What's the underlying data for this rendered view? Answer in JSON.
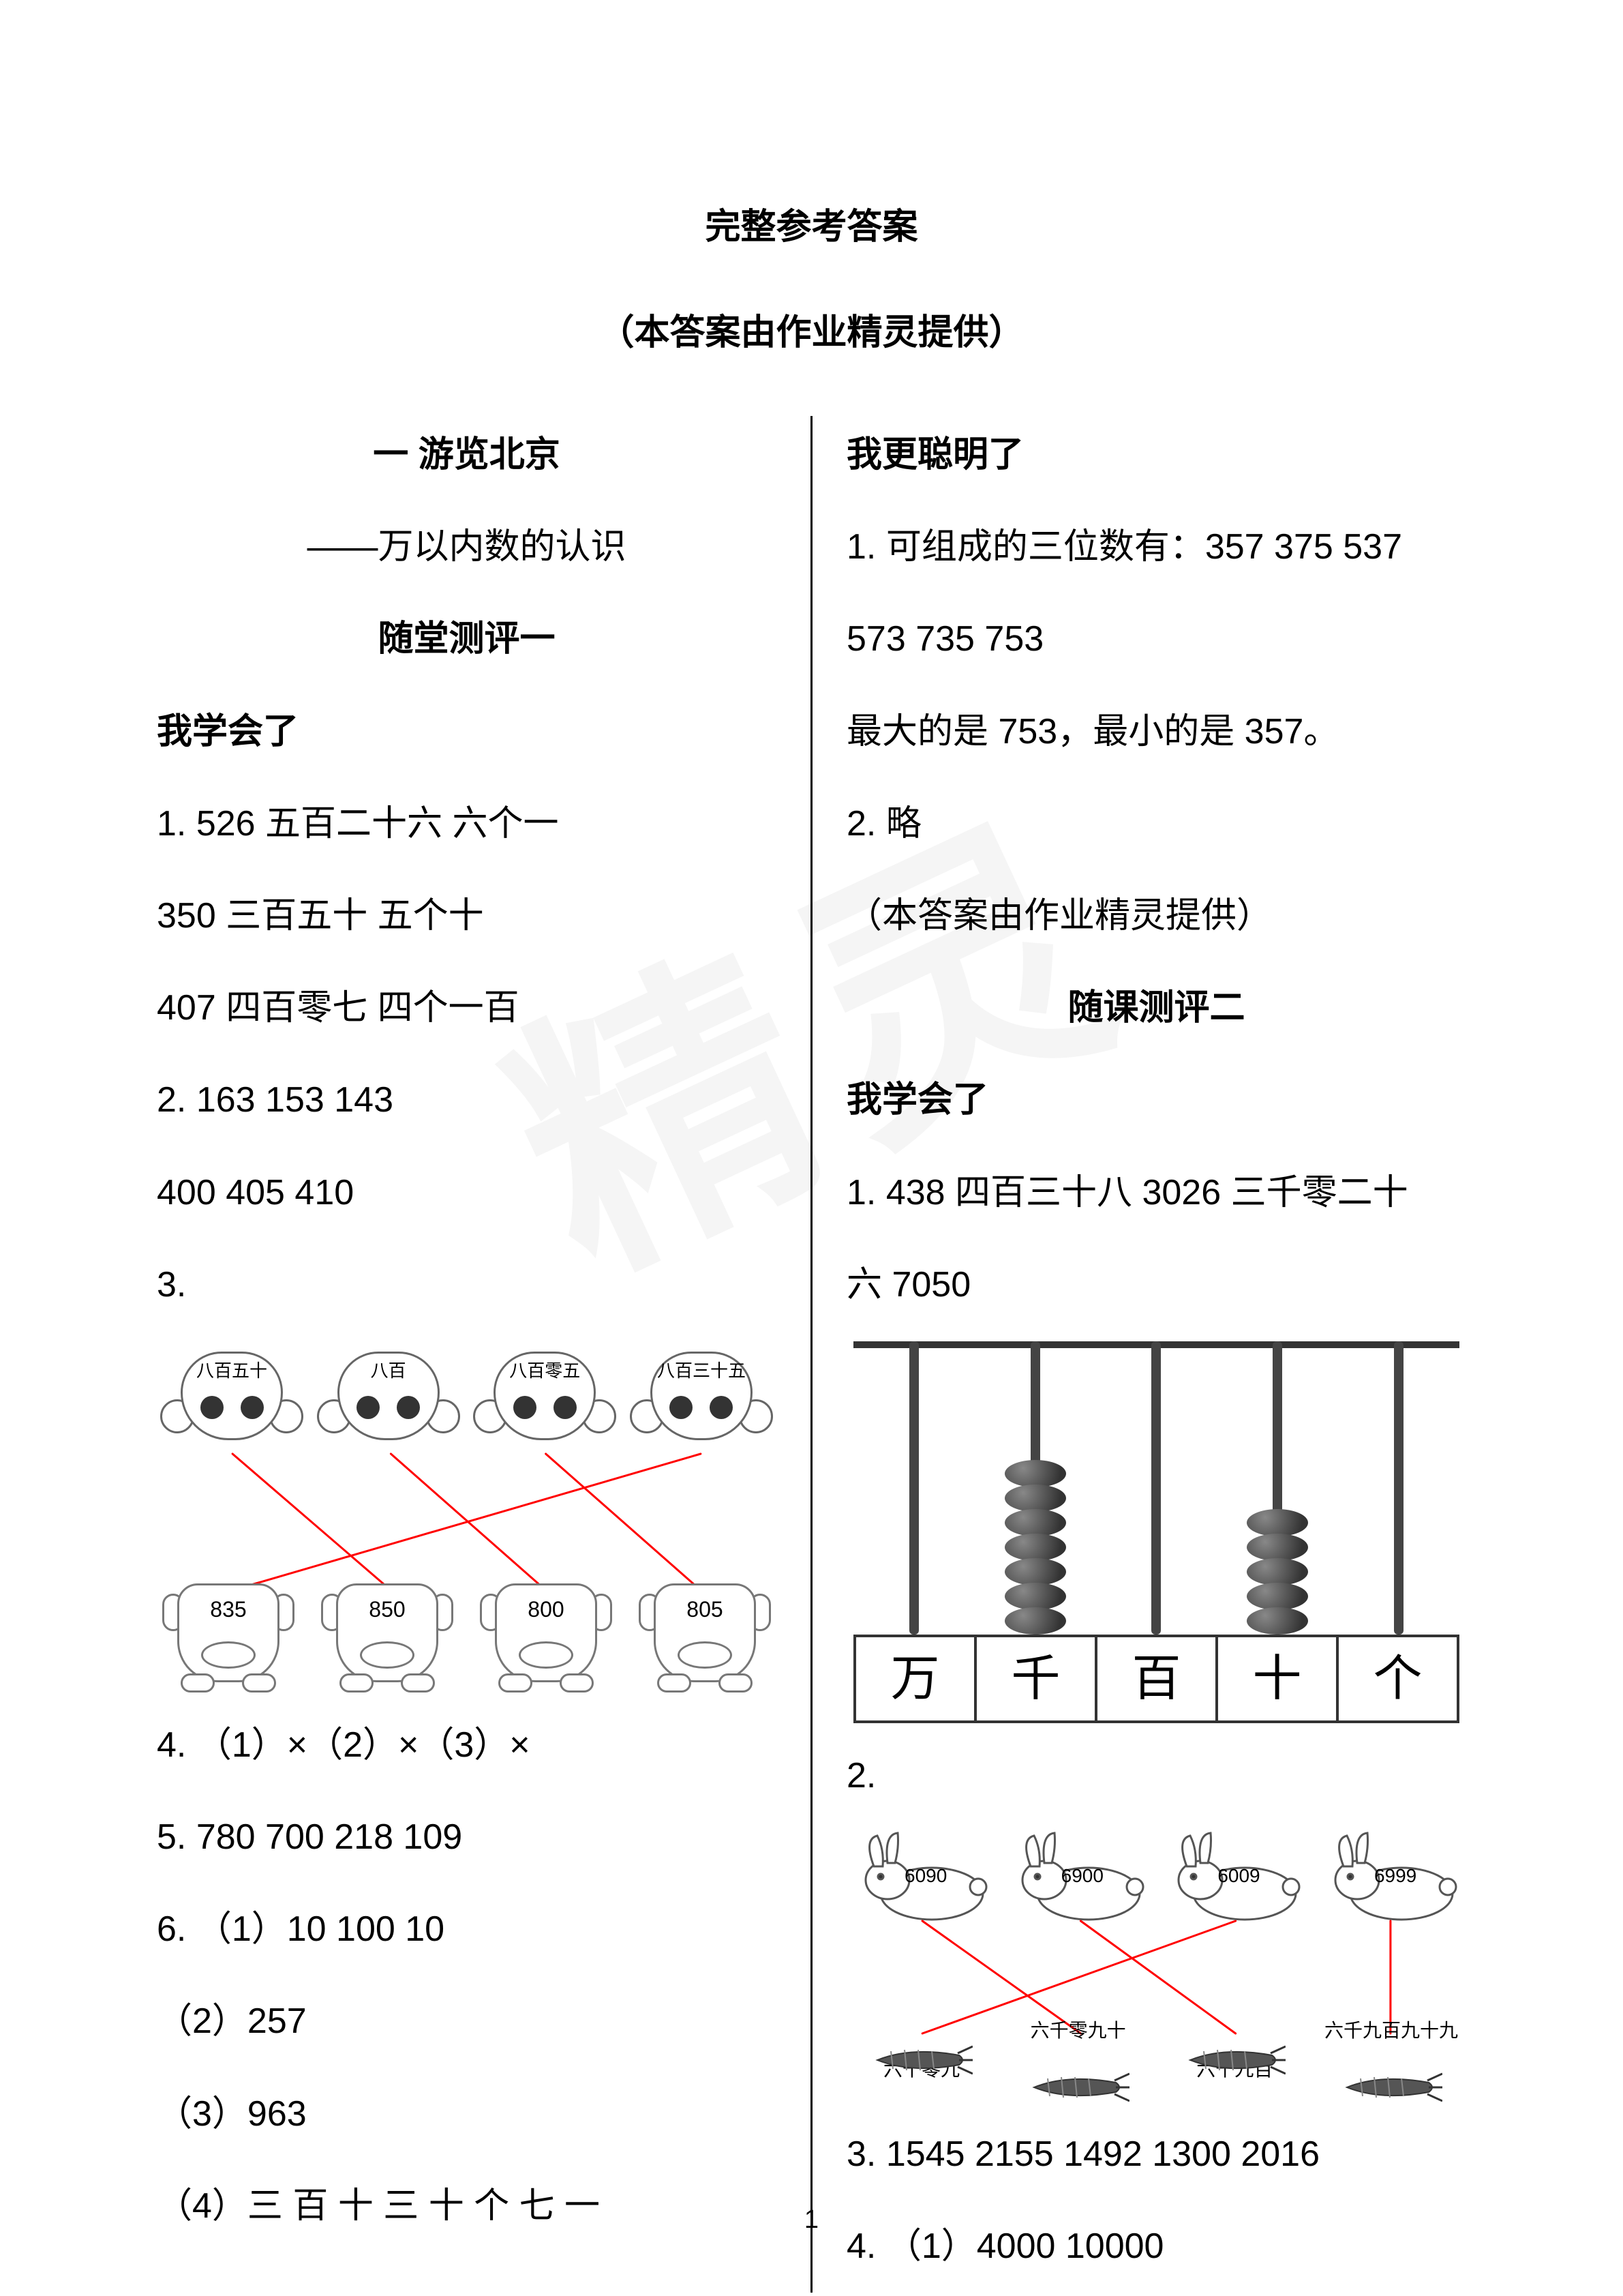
{
  "header": {
    "title": "完整参考答案",
    "subtitle": "（本答案由作业精灵提供）"
  },
  "watermark": "精灵",
  "page_number": "1",
  "left": {
    "chapter": "一 游览北京",
    "chapter_sub": "——万以内数的认识",
    "section": "随堂测评一",
    "h_learned": "我学会了",
    "l1": "1. 526  五百二十六  六个一",
    "l2": "350  三百五十  五个十",
    "l3": "407  四百零七  四个一百",
    "l4": "2. 163  153  143",
    "l5": "400  405  410",
    "l6": "3.",
    "l7": "4. （1）×（2）×（3）×",
    "l8": "5. 780  700  218  109",
    "l9": "6. （1）10  100  10",
    "l10": "（2）257",
    "l11": "（3）963",
    "l12": "（4）三  百  十  三  十  个  七  一"
  },
  "right": {
    "h_smart": "我更聪明了",
    "r1": "1. 可组成的三位数有：357  375  537",
    "r2": "573  735  753",
    "r3": "最大的是 753，最小的是 357。",
    "r4": "2. 略",
    "r5": "（本答案由作业精灵提供）",
    "section2": "随课测评二",
    "h_learned2": "我学会了",
    "r6a": "1. 438  四百三十八  3026  三千零二十",
    "r6b": "六  7050",
    "r7": "2.",
    "r8": "3. 1545  2155  1492  1300  2016",
    "r9": "4. （1）4000  10000"
  },
  "monkey_match": {
    "heads": [
      "八百五十",
      "八百",
      "八百零五",
      "八百三十五"
    ],
    "bodies": [
      "835",
      "850",
      "800",
      "805"
    ],
    "lines": [
      {
        "from": 0,
        "to": 1
      },
      {
        "from": 1,
        "to": 2
      },
      {
        "from": 2,
        "to": 3
      },
      {
        "from": 3,
        "to": 0
      }
    ],
    "line_color": "#ff0000",
    "line_width": 3
  },
  "abacus": {
    "places": [
      "万",
      "千",
      "百",
      "十",
      "个"
    ],
    "beads": [
      0,
      7,
      0,
      5,
      0
    ],
    "bead_color_dark": "#333333",
    "bead_color_light": "#888888",
    "border_color": "#333333"
  },
  "rabbit_match": {
    "rabbits": [
      "6090",
      "6900",
      "6009",
      "6999"
    ],
    "carrots": [
      "六千零九",
      "六千零九十",
      "六千九百",
      "六千九百九十九"
    ],
    "carrot_label_pos": [
      "below",
      "above",
      "below",
      "above"
    ],
    "lines": [
      {
        "from": 0,
        "to": 1
      },
      {
        "from": 1,
        "to": 2
      },
      {
        "from": 2,
        "to": 0
      },
      {
        "from": 3,
        "to": 3
      }
    ],
    "line_color": "#ff0000",
    "line_width": 3
  }
}
